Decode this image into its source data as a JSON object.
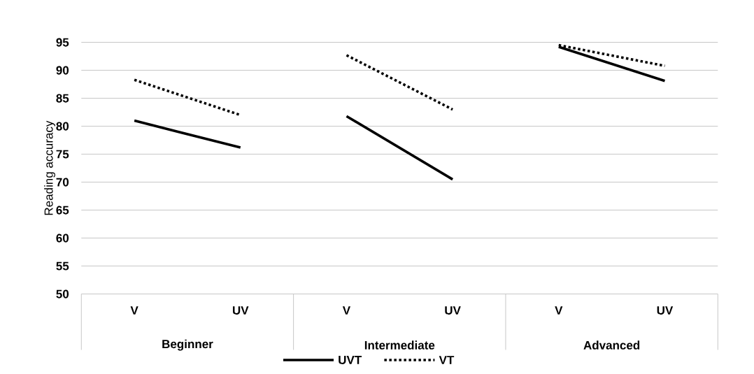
{
  "chart_data": {
    "type": "line",
    "ylabel": "Reading accuracy",
    "categories": [
      "V",
      "UV",
      "V",
      "UV",
      "V",
      "UV"
    ],
    "annotations": [
      "Beginner",
      "Intermediate",
      "Advanced"
    ],
    "series": [
      {
        "name": "UVT",
        "color": "#000000",
        "line_style": "solid",
        "values": [
          81,
          76.2,
          81.8,
          70.5,
          94.2,
          88.1
        ]
      },
      {
        "name": "VT",
        "color": "#000000",
        "line_style": "dotted",
        "values": [
          88.3,
          82,
          92.7,
          83,
          94.5,
          90.8
        ]
      }
    ],
    "ylim": [
      50,
      95
    ],
    "yticks": [
      50,
      55,
      60,
      65,
      70,
      75,
      80,
      85,
      90,
      95
    ],
    "grid": "y",
    "legend": "bottom"
  }
}
